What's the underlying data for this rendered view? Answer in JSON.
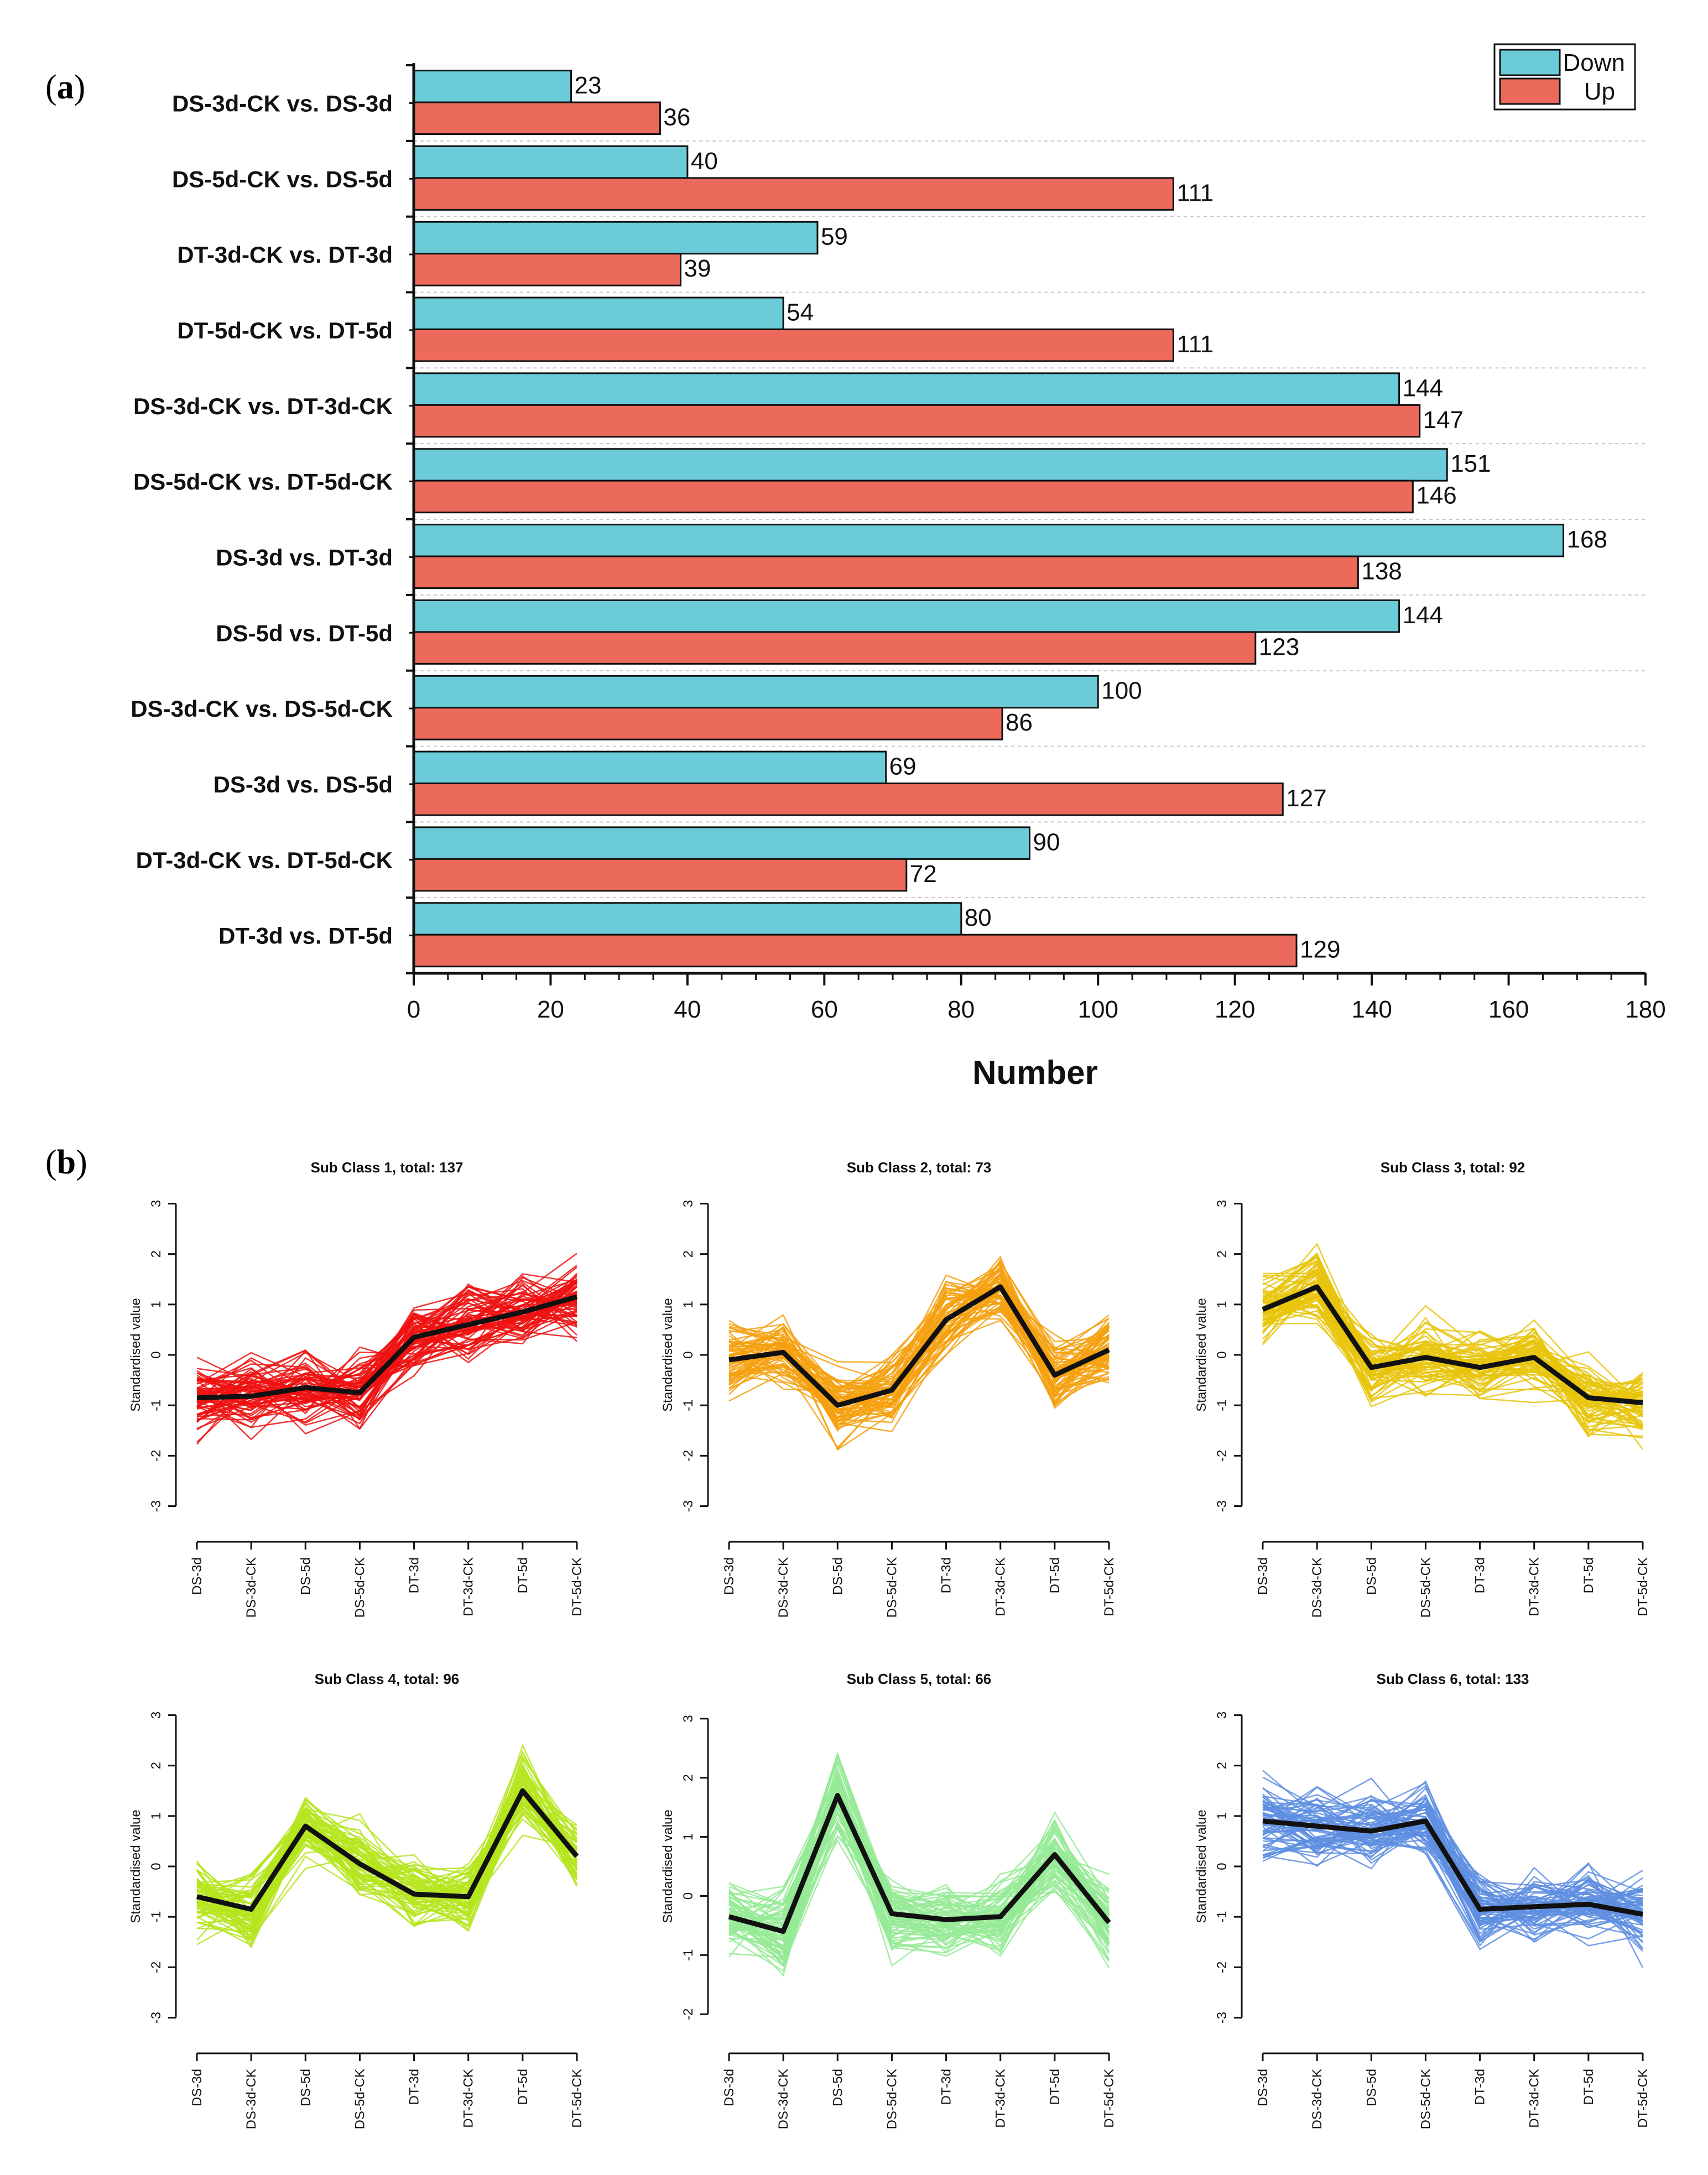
{
  "panel_a": {
    "label_open": "(",
    "label_letter": "a",
    "label_close": ")",
    "chart_data": {
      "type": "bar",
      "orientation": "horizontal",
      "xlabel": "Number",
      "xlim": [
        0,
        180
      ],
      "xticks": [
        0,
        20,
        40,
        60,
        80,
        100,
        120,
        140,
        160,
        180
      ],
      "categories": [
        "DS-3d-CK vs. DS-3d",
        "DS-5d-CK vs. DS-5d",
        "DT-3d-CK vs. DT-3d",
        "DT-5d-CK vs. DT-5d",
        "DS-3d-CK vs. DT-3d-CK",
        "DS-5d-CK vs. DT-5d-CK",
        "DS-3d vs. DT-3d",
        "DS-5d vs. DT-5d",
        "DS-3d-CK vs. DS-5d-CK",
        "DS-3d vs. DS-5d",
        "DT-3d-CK vs. DT-5d-CK",
        "DT-3d vs. DT-5d"
      ],
      "series": [
        {
          "name": "Down",
          "color": "#6ccbd9",
          "values": [
            23,
            40,
            59,
            54,
            144,
            151,
            168,
            144,
            100,
            69,
            90,
            80
          ]
        },
        {
          "name": "Up",
          "color": "#ec6a5c",
          "values": [
            36,
            111,
            39,
            111,
            147,
            146,
            138,
            123,
            86,
            127,
            72,
            129
          ]
        }
      ],
      "legend": "top-right"
    }
  },
  "panel_b": {
    "label_open": "(",
    "label_letter": "b",
    "label_close": ")",
    "chart_data": {
      "type": "line",
      "ylabel": "Standardised value",
      "xticks": [
        "DS-3d",
        "DS-3d-CK",
        "DS-5d",
        "DS-5d-CK",
        "DT-3d",
        "DT-3d-CK",
        "DT-5d",
        "DT-5d-CK"
      ],
      "subplots": [
        {
          "title": "Sub Class 1, total: 137",
          "color": "#ee1111",
          "ylim": [
            -3,
            3
          ],
          "yticks": [
            -3,
            -2,
            -1,
            0,
            1,
            2,
            3
          ],
          "mean": [
            -0.85,
            -0.82,
            -0.65,
            -0.75,
            0.35,
            0.6,
            0.85,
            1.15
          ]
        },
        {
          "title": "Sub Class 2, total: 73",
          "color": "#f5a00f",
          "ylim": [
            -3,
            3
          ],
          "yticks": [
            -3,
            -2,
            -1,
            0,
            1,
            2,
            3
          ],
          "mean": [
            -0.1,
            0.05,
            -1.0,
            -0.7,
            0.7,
            1.35,
            -0.4,
            0.1
          ]
        },
        {
          "title": "Sub Class 3, total: 92",
          "color": "#e8c40c",
          "ylim": [
            -3,
            3
          ],
          "yticks": [
            -3,
            -2,
            -1,
            0,
            1,
            2,
            3
          ],
          "mean": [
            0.9,
            1.35,
            -0.25,
            -0.05,
            -0.25,
            -0.05,
            -0.85,
            -0.95
          ]
        },
        {
          "title": "Sub Class 4, total: 96",
          "color": "#b5e51d",
          "ylim": [
            -3,
            3
          ],
          "yticks": [
            -3,
            -2,
            -1,
            0,
            1,
            2,
            3
          ],
          "mean": [
            -0.6,
            -0.85,
            0.8,
            0.05,
            -0.55,
            -0.6,
            1.5,
            0.2
          ]
        },
        {
          "title": "Sub Class 5, total: 66",
          "color": "#95ea95",
          "ylim": [
            -2,
            3
          ],
          "yticks": [
            -2,
            -1,
            0,
            1,
            2,
            3
          ],
          "mean": [
            -0.35,
            -0.6,
            1.7,
            -0.3,
            -0.4,
            -0.35,
            0.7,
            -0.45
          ]
        },
        {
          "title": "Sub Class 6, total: 133",
          "color": "#5e8ee0",
          "ylim": [
            -3,
            3
          ],
          "yticks": [
            -3,
            -2,
            -1,
            0,
            1,
            2,
            3
          ],
          "mean": [
            0.9,
            0.8,
            0.7,
            0.9,
            -0.85,
            -0.8,
            -0.75,
            -0.95
          ]
        }
      ]
    }
  }
}
